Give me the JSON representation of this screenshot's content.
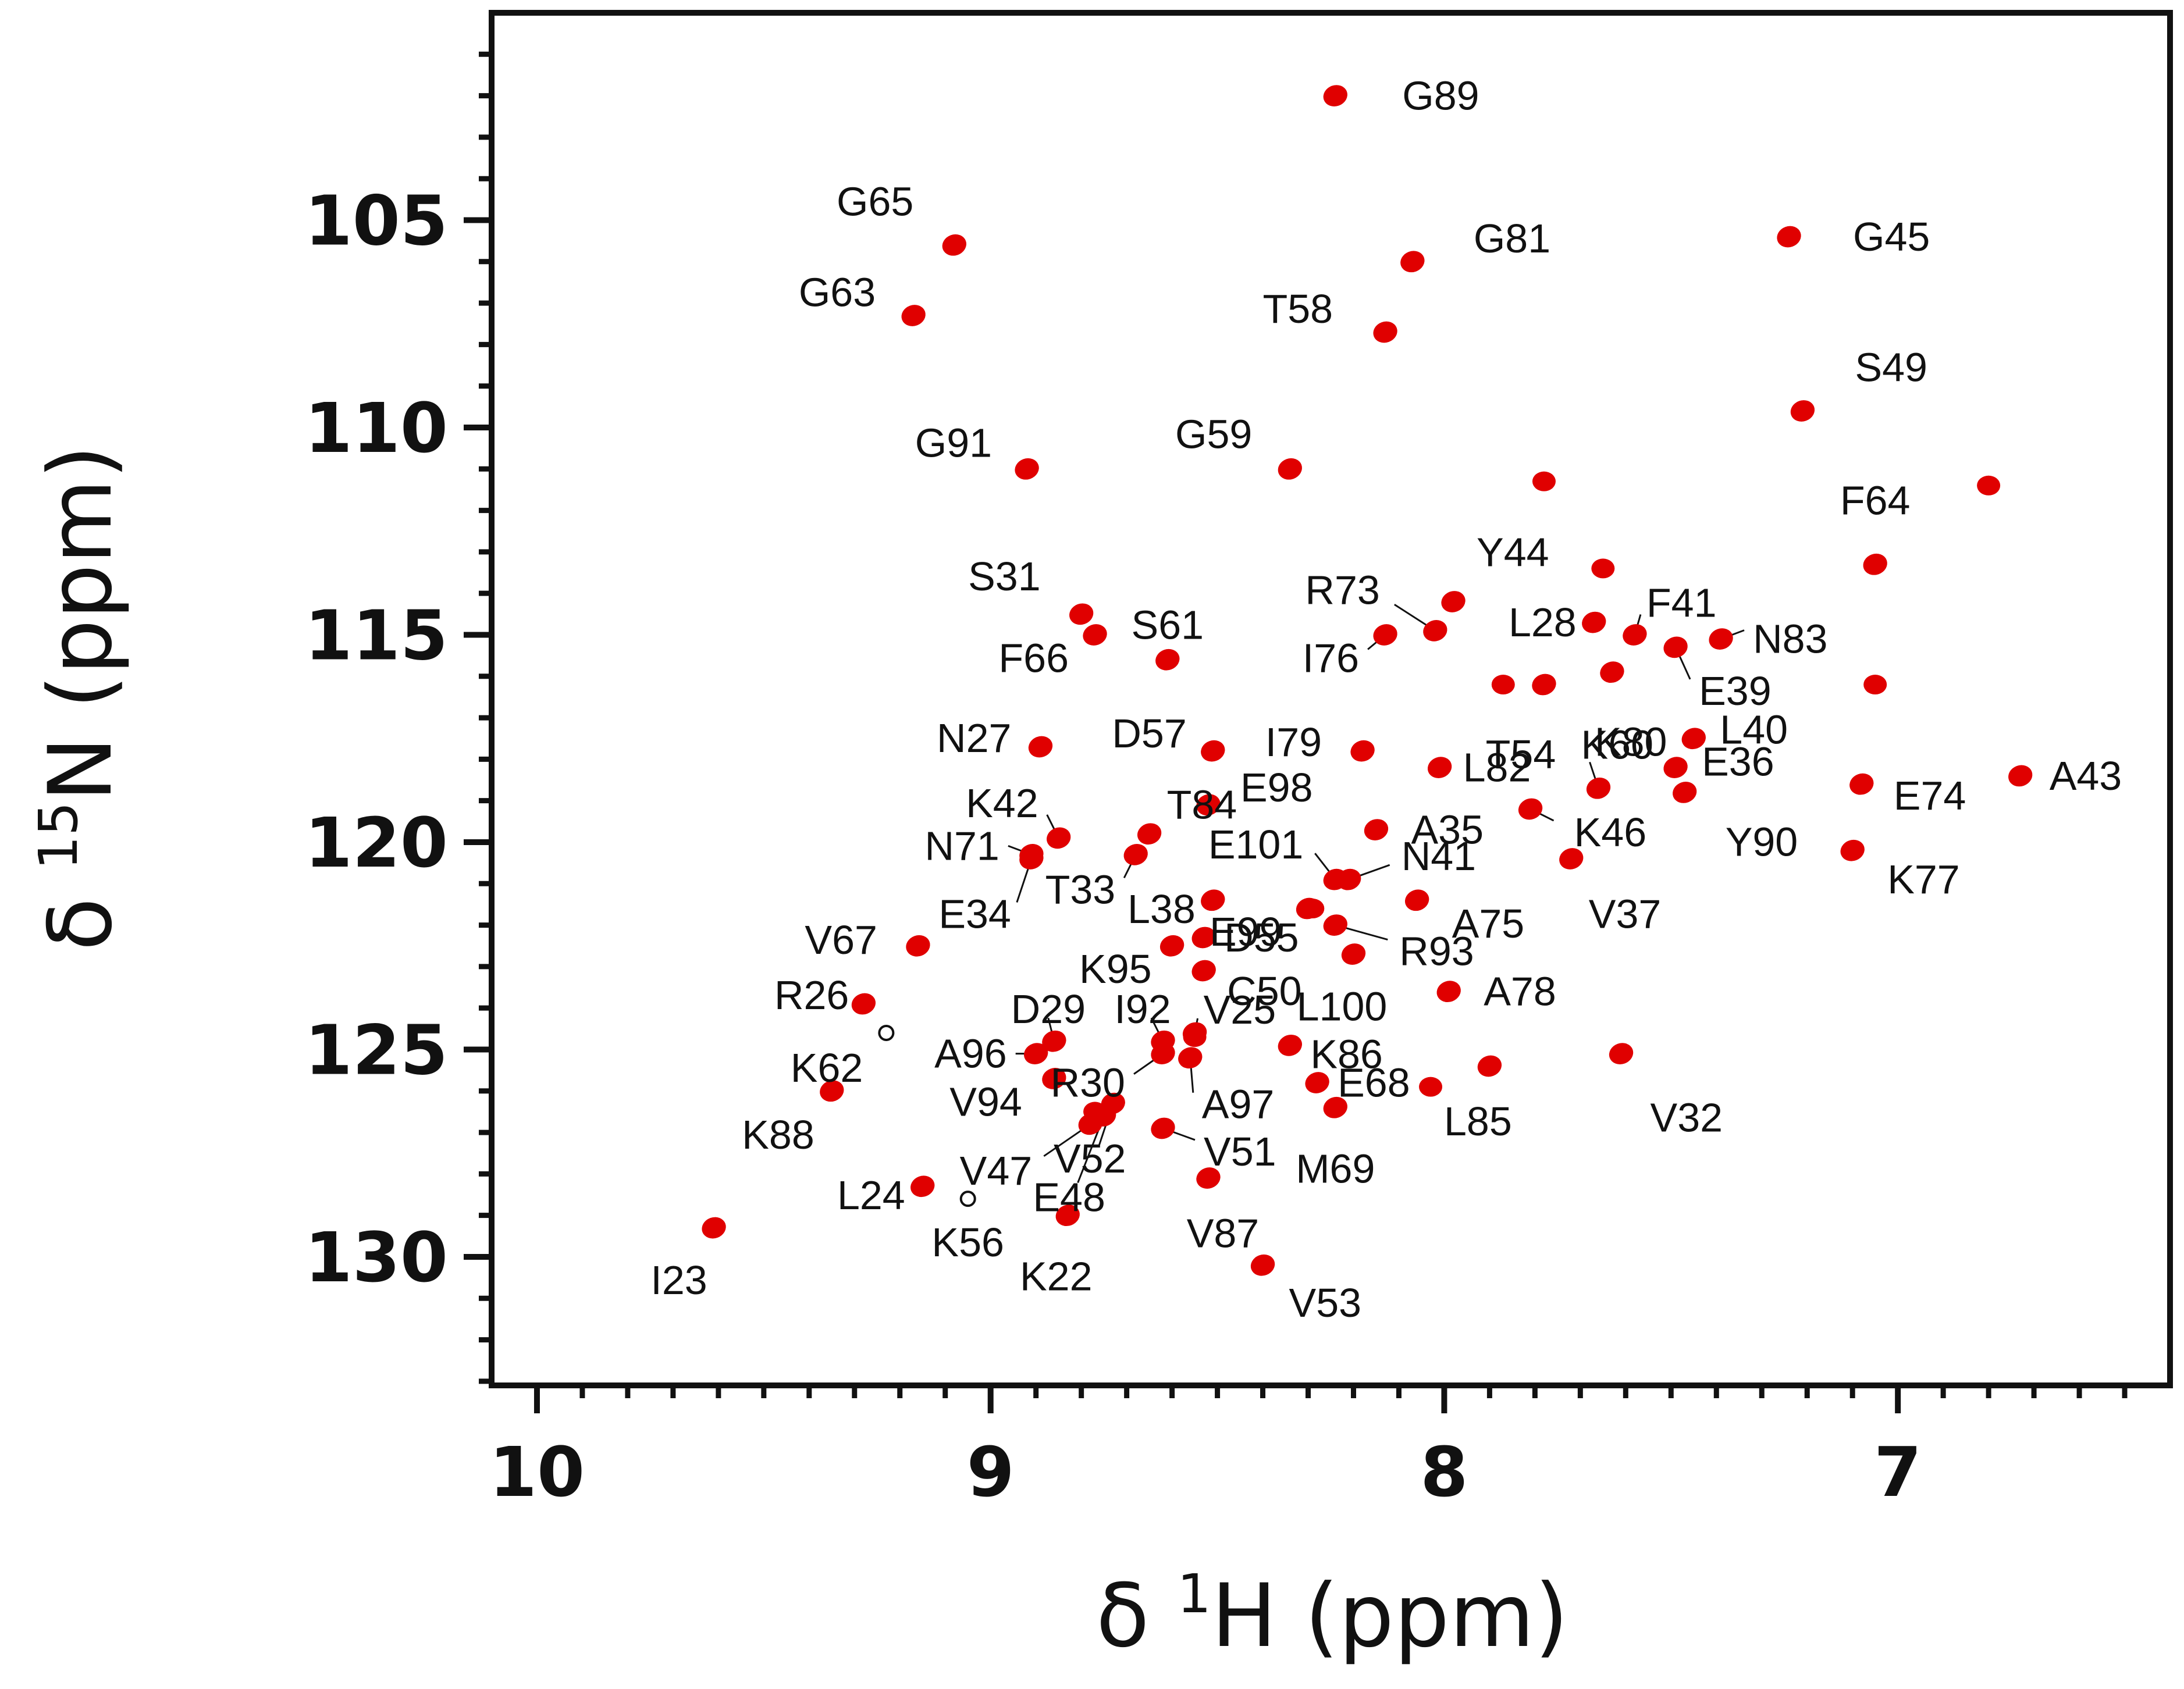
{
  "chart_data": {
    "type": "scatter",
    "title": "",
    "x_axis": {
      "label_prefix": "δ ",
      "label_isotope_sup": "1",
      "label_nucleus": "H",
      "label_unit": " (ppm)",
      "range": [
        10.1,
        6.4
      ],
      "reversed": true,
      "major_ticks": [
        10,
        9,
        8,
        7
      ],
      "tick_labels": [
        "10",
        "9",
        "8",
        "7"
      ],
      "minor_step": 0.1
    },
    "y_axis": {
      "label_prefix": "δ ",
      "label_isotope_sup": "15",
      "label_nucleus": "N",
      "label_unit": " (ppm)",
      "range": [
        100.0,
        133.1
      ],
      "reversed": true,
      "major_ticks": [
        105,
        110,
        115,
        120,
        125,
        130
      ],
      "tick_labels": [
        "105",
        "110",
        "115",
        "120",
        "125",
        "130"
      ],
      "minor_step": 1
    },
    "colors": {
      "peak": "#e00000",
      "axis": "#111111",
      "text": "#111111"
    },
    "peaks": [
      {
        "label": "G89",
        "h": 8.24,
        "n": 102.0
      },
      {
        "label": "G65",
        "h": 9.08,
        "n": 105.6
      },
      {
        "label": "G81",
        "h": 8.07,
        "n": 106.0
      },
      {
        "label": "G45",
        "h": 7.24,
        "n": 105.4
      },
      {
        "label": "G63",
        "h": 9.17,
        "n": 107.3
      },
      {
        "label": "T58",
        "h": 8.13,
        "n": 107.7
      },
      {
        "label": "S49",
        "h": 7.21,
        "n": 109.6
      },
      {
        "label": "G91",
        "h": 8.92,
        "n": 111.0
      },
      {
        "label": "G59",
        "h": 8.34,
        "n": 111.0
      },
      {
        "label": "F64",
        "h": 7.05,
        "n": 113.3
      },
      {
        "label": "S31",
        "h": 8.8,
        "n": 114.5
      },
      {
        "label": "R73",
        "h": 8.02,
        "n": 114.9
      },
      {
        "label": "Y44",
        "h": 7.98,
        "n": 114.2
      },
      {
        "label": "L28",
        "h": 7.67,
        "n": 114.7
      },
      {
        "label": "F41",
        "h": 7.58,
        "n": 115.0
      },
      {
        "label": "N83",
        "h": 7.39,
        "n": 115.1
      },
      {
        "label": "F66",
        "h": 8.77,
        "n": 115.0
      },
      {
        "label": "S61",
        "h": 8.61,
        "n": 115.6
      },
      {
        "label": "I76",
        "h": 8.13,
        "n": 115.0
      },
      {
        "label": "E39",
        "h": 7.49,
        "n": 115.3
      },
      {
        "label": "K80",
        "h": 7.63,
        "n": 115.9
      },
      {
        "label": "T54",
        "h": 7.78,
        "n": 116.2
      },
      {
        "label": "N27",
        "h": 8.89,
        "n": 117.7
      },
      {
        "label": "D57",
        "h": 8.51,
        "n": 117.8
      },
      {
        "label": "I79",
        "h": 8.18,
        "n": 117.8
      },
      {
        "label": "L40",
        "h": 7.45,
        "n": 117.5
      },
      {
        "label": "L82",
        "h": 8.01,
        "n": 118.2
      },
      {
        "label": "K60",
        "h": 7.66,
        "n": 118.7
      },
      {
        "label": "E36",
        "h": 7.49,
        "n": 118.2
      },
      {
        "label": "E74",
        "h": 7.08,
        "n": 118.6
      },
      {
        "label": "A43",
        "h": 6.73,
        "n": 118.4
      },
      {
        "label": "Y90",
        "h": 7.47,
        "n": 118.8
      },
      {
        "label": "E98",
        "h": 8.52,
        "n": 119.1
      },
      {
        "label": "K42",
        "h": 8.85,
        "n": 119.9
      },
      {
        "label": "T84",
        "h": 8.65,
        "n": 119.8
      },
      {
        "label": "A35",
        "h": 8.15,
        "n": 119.7
      },
      {
        "label": "K46",
        "h": 7.81,
        "n": 119.2
      },
      {
        "label": "N71",
        "h": 8.91,
        "n": 120.3
      },
      {
        "label": "E101",
        "h": 8.24,
        "n": 120.9
      },
      {
        "label": "N41",
        "h": 8.21,
        "n": 120.9
      },
      {
        "label": "T33",
        "h": 8.68,
        "n": 120.3
      },
      {
        "label": "K77",
        "h": 7.1,
        "n": 120.2
      },
      {
        "label": "V37",
        "h": 7.72,
        "n": 120.4
      },
      {
        "label": "E34",
        "h": 8.91,
        "n": 120.4
      },
      {
        "label": "E99",
        "h": 8.3,
        "n": 121.6
      },
      {
        "label": "A75",
        "h": 8.06,
        "n": 121.4
      },
      {
        "label": "L38",
        "h": 8.51,
        "n": 121.4
      },
      {
        "label": "D55",
        "h": 8.53,
        "n": 122.3
      },
      {
        "label": "R93",
        "h": 8.24,
        "n": 122.0
      },
      {
        "label": "K95",
        "h": 8.6,
        "n": 122.5
      },
      {
        "label": "V67",
        "h": 9.16,
        "n": 122.5
      },
      {
        "label": "C50",
        "h": 8.53,
        "n": 123.1
      },
      {
        "label": "L100",
        "h": 8.2,
        "n": 122.7
      },
      {
        "label": "A78",
        "h": 7.99,
        "n": 123.6
      },
      {
        "label": "R26",
        "h": 9.28,
        "n": 123.9
      },
      {
        "label": "D29",
        "h": 8.86,
        "n": 124.8
      },
      {
        "label": "I92",
        "h": 8.62,
        "n": 124.8
      },
      {
        "label": "V25",
        "h": 8.55,
        "n": 124.6
      },
      {
        "label": "K62",
        "h": 9.23,
        "n": 124.6
      },
      {
        "label": "A96",
        "h": 8.9,
        "n": 125.1
      },
      {
        "label": "K86",
        "h": 8.34,
        "n": 124.9
      },
      {
        "label": "R30",
        "h": 8.62,
        "n": 125.1
      },
      {
        "label": "V32",
        "h": 7.61,
        "n": 125.1
      },
      {
        "label": "A97",
        "h": 8.56,
        "n": 125.2
      },
      {
        "label": "K88",
        "h": 9.35,
        "n": 126.0
      },
      {
        "label": "V94",
        "h": 8.86,
        "n": 125.7
      },
      {
        "label": "E68",
        "h": 8.28,
        "n": 125.8
      },
      {
        "label": "L85",
        "h": 7.9,
        "n": 125.4
      },
      {
        "label": "V47",
        "h": 8.78,
        "n": 126.8
      },
      {
        "label": "V52",
        "h": 8.73,
        "n": 126.3
      },
      {
        "label": "V51",
        "h": 8.62,
        "n": 126.9
      },
      {
        "label": "M69",
        "h": 8.24,
        "n": 126.4
      },
      {
        "label": "E48",
        "h": 8.75,
        "n": 126.6
      },
      {
        "label": "L24",
        "h": 9.15,
        "n": 128.3
      },
      {
        "label": "K56",
        "h": 9.05,
        "n": 128.6
      },
      {
        "label": "V87",
        "h": 8.52,
        "n": 128.1
      },
      {
        "label": "K22",
        "h": 8.83,
        "n": 129.0
      },
      {
        "label": "I23",
        "h": 9.61,
        "n": 129.3
      },
      {
        "label": "V53",
        "h": 8.4,
        "n": 130.2
      }
    ],
    "unlabeled_peaks": [
      {
        "h": 7.78,
        "n": 111.3
      },
      {
        "h": 6.8,
        "n": 111.4
      },
      {
        "h": 7.65,
        "n": 113.4
      },
      {
        "h": 7.05,
        "n": 116.2
      },
      {
        "h": 7.87,
        "n": 116.2
      },
      {
        "h": 8.29,
        "n": 121.6
      },
      {
        "h": 8.03,
        "n": 125.9
      },
      {
        "h": 8.55,
        "n": 124.7
      },
      {
        "h": 8.77,
        "n": 126.5
      }
    ]
  }
}
